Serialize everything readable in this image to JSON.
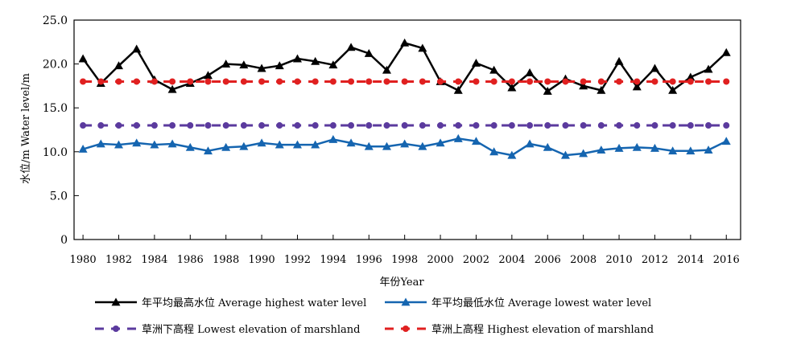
{
  "chart_data": {
    "type": "line",
    "title": "",
    "ylabel": "水位/m  Water level/m",
    "xlabel": "年份Year",
    "x": [
      1980,
      1981,
      1982,
      1983,
      1984,
      1985,
      1986,
      1987,
      1988,
      1989,
      1990,
      1991,
      1992,
      1993,
      1994,
      1995,
      1996,
      1997,
      1998,
      1999,
      2000,
      2001,
      2002,
      2003,
      2004,
      2005,
      2006,
      2007,
      2008,
      2009,
      2010,
      2011,
      2012,
      2013,
      2014,
      2015,
      2016
    ],
    "xticks": [
      "1980",
      "1982",
      "1984",
      "1986",
      "1988",
      "1990",
      "1992",
      "1994",
      "1996",
      "1998",
      "2000",
      "2002",
      "2004",
      "2006",
      "2008",
      "2010",
      "2012",
      "2014",
      "2016"
    ],
    "yticks": [
      "0",
      "5.0",
      "10.0",
      "15.0",
      "20.0",
      "25.0"
    ],
    "ylim": [
      0,
      25
    ],
    "grid": false,
    "legend_position": "bottom",
    "series": [
      {
        "name": "年平均最高水位  Average highest water level",
        "color": "#000000",
        "marker": "triangle",
        "dash": "solid",
        "values": [
          20.6,
          17.8,
          19.8,
          21.7,
          18.2,
          17.1,
          17.8,
          18.7,
          20.0,
          19.9,
          19.5,
          19.8,
          20.6,
          20.3,
          19.9,
          21.9,
          21.2,
          19.3,
          22.4,
          21.8,
          18.0,
          17.0,
          20.1,
          19.3,
          17.3,
          19.0,
          16.9,
          18.3,
          17.5,
          17.0,
          20.3,
          17.4,
          19.5,
          17.0,
          18.5,
          19.4,
          21.3
        ]
      },
      {
        "name": "年平均最低水位  Average lowest water level",
        "color": "#1565b0",
        "marker": "triangle",
        "dash": "solid",
        "values": [
          10.3,
          10.9,
          10.8,
          11.0,
          10.8,
          10.9,
          10.5,
          10.1,
          10.5,
          10.6,
          11.0,
          10.8,
          10.8,
          10.8,
          11.4,
          11.0,
          10.6,
          10.6,
          10.9,
          10.6,
          11.0,
          11.5,
          11.2,
          10.0,
          9.6,
          10.9,
          10.5,
          9.6,
          9.8,
          10.2,
          10.4,
          10.5,
          10.4,
          10.1,
          10.1,
          10.2,
          11.2
        ]
      },
      {
        "name": "草洲下高程  Lowest elevation of marshland",
        "color": "#5b3a9e",
        "marker": "circle",
        "dash": "dashed",
        "values": [
          13.0,
          13.0,
          13.0,
          13.0,
          13.0,
          13.0,
          13.0,
          13.0,
          13.0,
          13.0,
          13.0,
          13.0,
          13.0,
          13.0,
          13.0,
          13.0,
          13.0,
          13.0,
          13.0,
          13.0,
          13.0,
          13.0,
          13.0,
          13.0,
          13.0,
          13.0,
          13.0,
          13.0,
          13.0,
          13.0,
          13.0,
          13.0,
          13.0,
          13.0,
          13.0,
          13.0,
          13.0
        ]
      },
      {
        "name": "草洲上高程  Highest elevation of marshland",
        "color": "#e02020",
        "marker": "circle",
        "dash": "dashed",
        "values": [
          18.0,
          18.0,
          18.0,
          18.0,
          18.0,
          18.0,
          18.0,
          18.0,
          18.0,
          18.0,
          18.0,
          18.0,
          18.0,
          18.0,
          18.0,
          18.0,
          18.0,
          18.0,
          18.0,
          18.0,
          18.0,
          18.0,
          18.0,
          18.0,
          18.0,
          18.0,
          18.0,
          18.0,
          18.0,
          18.0,
          18.0,
          18.0,
          18.0,
          18.0,
          18.0,
          18.0,
          18.0
        ]
      }
    ]
  }
}
